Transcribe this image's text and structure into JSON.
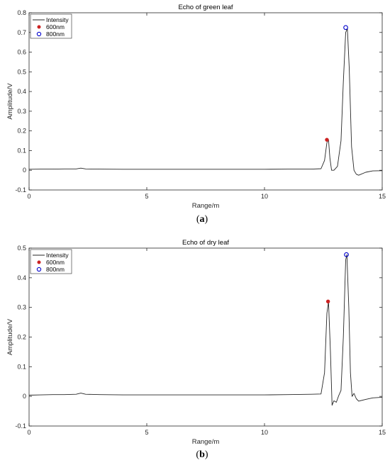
{
  "chart_data": [
    {
      "type": "line",
      "title": "Echo of green leaf",
      "xlabel": "Range/m",
      "ylabel": "Amplitude/V",
      "xlim": [
        0,
        15
      ],
      "ylim": [
        -0.1,
        0.8
      ],
      "xticks": [
        "0",
        "5",
        "10",
        "15"
      ],
      "yticks": [
        "-0.1",
        "0",
        "0.1",
        "0.2",
        "0.3",
        "0.4",
        "0.5",
        "0.6",
        "0.7",
        "0.8"
      ],
      "grid": false,
      "legend_position": "top-left",
      "caption": {
        "open": "(",
        "letter": "a",
        "close": ")"
      },
      "series": [
        {
          "name": "Intensity",
          "style": "line",
          "color": "#262626",
          "x": [
            0,
            0.5,
            1.0,
            1.5,
            2.0,
            2.2,
            2.4,
            3.0,
            4.0,
            5.0,
            6.0,
            7.0,
            8.0,
            9.0,
            10.0,
            11.0,
            12.0,
            12.4,
            12.55,
            12.65,
            12.72,
            12.78,
            12.85,
            12.95,
            13.1,
            13.25,
            13.35,
            13.45,
            13.52,
            13.6,
            13.7,
            13.8,
            13.9,
            14.0,
            14.3,
            14.6,
            15.0
          ],
          "y": [
            0.005,
            0.006,
            0.006,
            0.007,
            0.007,
            0.011,
            0.007,
            0.006,
            0.005,
            0.005,
            0.005,
            0.005,
            0.005,
            0.005,
            0.005,
            0.006,
            0.006,
            0.008,
            0.05,
            0.14,
            0.155,
            0.06,
            0.0,
            0.0,
            0.02,
            0.15,
            0.45,
            0.7,
            0.72,
            0.52,
            0.12,
            0.0,
            -0.02,
            -0.025,
            -0.01,
            -0.003,
            -0.002
          ]
        },
        {
          "name": "600nm",
          "style": "marker-filled",
          "color": "#cc2222",
          "x": [
            12.65
          ],
          "y": [
            0.155
          ]
        },
        {
          "name": "800nm",
          "style": "marker-open",
          "color": "#0000cc",
          "x": [
            13.45
          ],
          "y": [
            0.725
          ]
        }
      ]
    },
    {
      "type": "line",
      "title": "Echo of dry leaf",
      "xlabel": "Range/m",
      "ylabel": "Amplitude/V",
      "xlim": [
        0,
        15
      ],
      "ylim": [
        -0.1,
        0.5
      ],
      "xticks": [
        "0",
        "5",
        "10",
        "15"
      ],
      "yticks": [
        "-0.1",
        "0",
        "0.1",
        "0.2",
        "0.3",
        "0.4",
        "0.5"
      ],
      "grid": false,
      "legend_position": "top-left",
      "caption": {
        "open": "(",
        "letter": "b",
        "close": ")"
      },
      "series": [
        {
          "name": "Intensity",
          "style": "line",
          "color": "#262626",
          "x": [
            0,
            0.5,
            1.0,
            1.5,
            2.0,
            2.2,
            2.4,
            3.0,
            4.0,
            5.0,
            6.0,
            7.0,
            8.0,
            9.0,
            10.0,
            11.0,
            12.0,
            12.4,
            12.55,
            12.65,
            12.72,
            12.8,
            12.87,
            12.95,
            13.05,
            13.15,
            13.25,
            13.35,
            13.45,
            13.5,
            13.58,
            13.65,
            13.72,
            13.8,
            13.9,
            14.0,
            14.3,
            14.6,
            15.0
          ],
          "y": [
            0.004,
            0.005,
            0.006,
            0.006,
            0.007,
            0.011,
            0.007,
            0.006,
            0.005,
            0.005,
            0.005,
            0.005,
            0.005,
            0.005,
            0.005,
            0.006,
            0.007,
            0.008,
            0.08,
            0.28,
            0.32,
            0.15,
            -0.03,
            -0.015,
            -0.02,
            0.002,
            0.02,
            0.2,
            0.46,
            0.478,
            0.3,
            0.08,
            0.0,
            0.01,
            -0.008,
            -0.016,
            -0.01,
            -0.005,
            -0.003
          ]
        },
        {
          "name": "600nm",
          "style": "marker-filled",
          "color": "#cc2222",
          "x": [
            12.7
          ],
          "y": [
            0.32
          ]
        },
        {
          "name": "800nm",
          "style": "marker-open",
          "color": "#0000cc",
          "x": [
            13.48
          ],
          "y": [
            0.478
          ]
        }
      ]
    }
  ]
}
